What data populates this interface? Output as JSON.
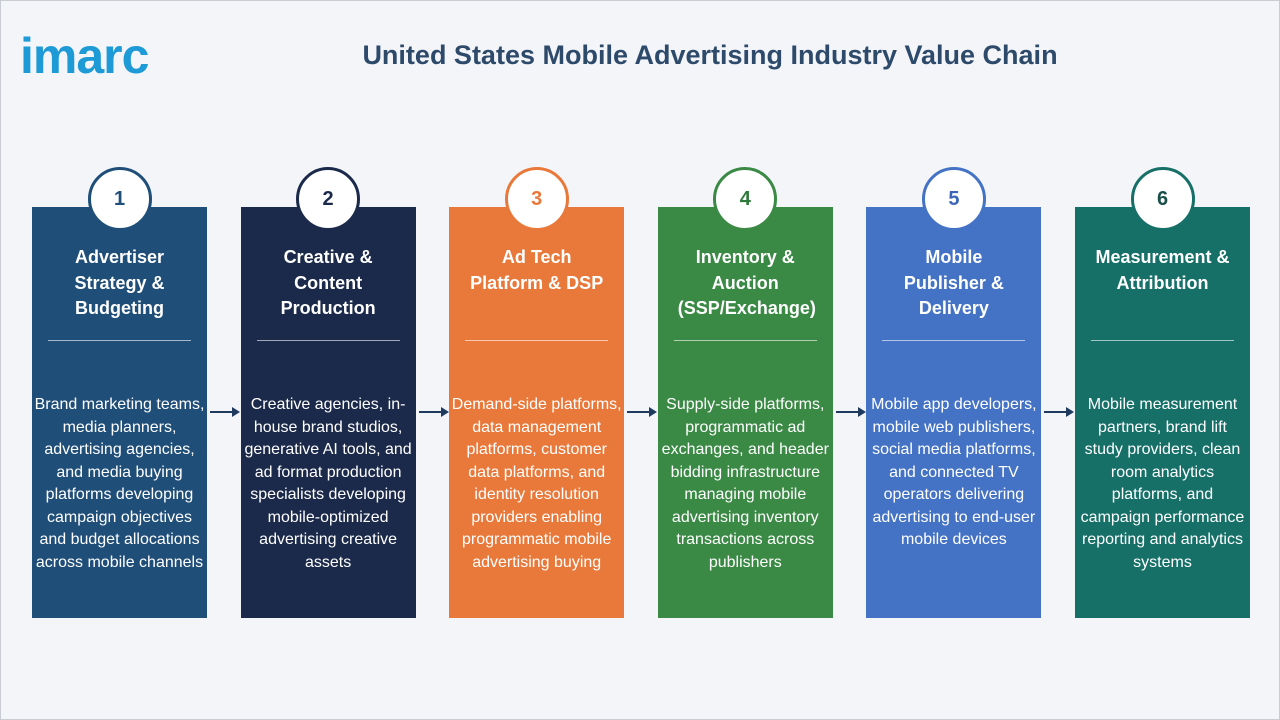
{
  "header": {
    "logo": "imarc",
    "title": "United States Mobile Advertising Industry Value Chain"
  },
  "steps": [
    {
      "number": "1",
      "title": "Advertiser Strategy & Budgeting",
      "description": "Brand marketing teams, media planners, advertising agencies, and media buying platforms developing campaign objectives and budget allocations across mobile channels",
      "color": "#1f4e79",
      "number_color": "#1f4e79"
    },
    {
      "number": "2",
      "title": "Creative & Content Production",
      "description": "Creative agencies, in-house brand studios, generative AI tools, and ad format production specialists developing mobile-optimized advertising creative assets",
      "color": "#1b2a4a",
      "number_color": "#1b2a4a"
    },
    {
      "number": "3",
      "title": "Ad Tech Platform & DSP",
      "description": "Demand-side platforms, data management platforms, customer data platforms, and identity resolution providers enabling programmatic mobile advertising buying",
      "color": "#e8793a",
      "number_color": "#e8793a"
    },
    {
      "number": "4",
      "title": "Inventory & Auction (SSP/Exchange)",
      "description": "Supply-side platforms, programmatic ad exchanges, and header bidding infrastructure managing mobile advertising inventory transactions across publishers",
      "color": "#3a8a45",
      "number_color": "#2f7a3a"
    },
    {
      "number": "5",
      "title": "Mobile Publisher & Delivery",
      "description": "Mobile app developers, mobile web publishers, social media platforms, and connected TV operators delivering advertising to end-user mobile devices",
      "color": "#4472c4",
      "number_color": "#3a66b5"
    },
    {
      "number": "6",
      "title": "Measurement & Attribution",
      "description": "Mobile measurement partners, brand lift study providers, clean room analytics platforms, and campaign performance reporting and analytics systems",
      "color": "#167068",
      "number_color": "#1a4f4a"
    }
  ]
}
